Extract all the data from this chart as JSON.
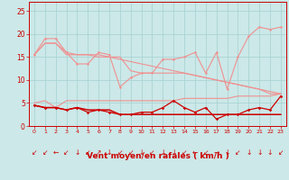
{
  "x": [
    0,
    1,
    2,
    3,
    4,
    5,
    6,
    7,
    8,
    9,
    10,
    11,
    12,
    13,
    14,
    15,
    16,
    17,
    18,
    19,
    20,
    21,
    22,
    23
  ],
  "line1_light": [
    15.5,
    19,
    19,
    16,
    13.5,
    13.5,
    16,
    15.5,
    8.5,
    10.5,
    11.5,
    11.5,
    14.5,
    14.5,
    15,
    16,
    11.5,
    16,
    8,
    15,
    19.5,
    21.5,
    21,
    21.5
  ],
  "line2_light": [
    15.5,
    18,
    18,
    16,
    15.5,
    15.5,
    15.5,
    15,
    15,
    12,
    11.5,
    11.5,
    11.5,
    11.5,
    11.5,
    11,
    10.5,
    10,
    9.5,
    9,
    8.5,
    8,
    7,
    7
  ],
  "line3_light": [
    15.5,
    18,
    18,
    15.5,
    15.5,
    15.5,
    15,
    15,
    14.5,
    14,
    13.5,
    13,
    12.5,
    12,
    11.5,
    11,
    10.5,
    10,
    9.5,
    9,
    8.5,
    8,
    7.5,
    7
  ],
  "line_avg_light": [
    5.0,
    5.5,
    4.0,
    5.5,
    5.5,
    5.5,
    5.5,
    5.5,
    5.5,
    5.5,
    5.5,
    5.5,
    5.5,
    5.5,
    6.0,
    6.0,
    6.0,
    6.0,
    6.0,
    6.5,
    6.5,
    6.5,
    6.5,
    7.0
  ],
  "line_dark": [
    4.5,
    4.0,
    4.0,
    3.5,
    4.0,
    3.0,
    3.5,
    3.0,
    2.5,
    2.5,
    3.0,
    3.0,
    4.0,
    5.5,
    4.0,
    3.0,
    4.0,
    1.5,
    2.5,
    2.5,
    3.5,
    4.0,
    3.5,
    6.5
  ],
  "line_dark2": [
    4.5,
    4.0,
    4.0,
    3.5,
    4.0,
    3.5,
    3.5,
    3.5,
    2.5,
    2.5,
    2.5,
    2.5,
    2.5,
    2.5,
    2.5,
    2.5,
    2.5,
    2.5,
    2.5,
    2.5,
    2.5,
    2.5,
    2.5,
    2.5
  ],
  "bg_color": "#cce8e8",
  "grid_color": "#aad4d4",
  "light_red": "#f09090",
  "dark_red": "#cc0000",
  "xlabel": "Vent moyen/en rafales ( km/h )",
  "xlabel_color": "#cc0000",
  "tick_color": "#cc0000",
  "ylim": [
    0,
    27
  ],
  "yticks": [
    0,
    5,
    10,
    15,
    20,
    25
  ],
  "xlim": [
    -0.5,
    23.5
  ],
  "arrow_chars": [
    "↙",
    "↙",
    "←",
    "↙",
    "↓",
    "↙",
    "↗",
    "↓",
    "↙",
    "↙",
    "↓",
    "↙",
    "↓",
    "↓",
    "↙",
    "←",
    "↙",
    "→",
    "↓",
    "↙",
    "↓",
    "↓",
    "↓",
    "↙"
  ]
}
